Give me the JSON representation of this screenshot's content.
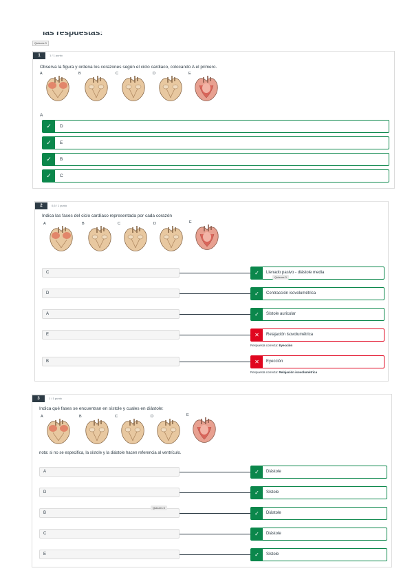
{
  "page": {
    "heading": "las respuestas:",
    "quizzes_tag": "Quizzes 3"
  },
  "floating_tags": {
    "tag_q2": "Quizzes 3",
    "tag_q3": "Quizzes 3"
  },
  "colors": {
    "correct": "#0b874b",
    "incorrect": "#e0061f",
    "number_badge": "#2d3b45"
  },
  "heart_labels": [
    "A",
    "B",
    "C",
    "D",
    "E"
  ],
  "q1": {
    "number": "1",
    "points": "1 / 1 punto",
    "text": "Observa la figura y ordena los corazones según el ciclo cardiaco, colocando A el primero.",
    "first_label": "A",
    "answers": [
      "D",
      "E",
      "B",
      "C"
    ]
  },
  "q2": {
    "number": "2",
    "points": "0,6 / 1 punto",
    "text": "Indica las fases del ciclo cardíaco representada por cada corazón",
    "rows": [
      {
        "left": "C",
        "right": "Llenado pasivo - diástole media",
        "correct": true
      },
      {
        "left": "D",
        "right": "Contracción isovolumétrica",
        "correct": true
      },
      {
        "left": "A",
        "right": "Sístole auricular",
        "correct": true
      },
      {
        "left": "E",
        "right": "Relajación isovolumétrica",
        "correct": false,
        "note_label": "Respuesta correcta:",
        "note_value": "Eyección"
      },
      {
        "left": "B",
        "right": "Eyección",
        "correct": false,
        "note_label": "Respuesta correcta:",
        "note_value": "Relajación isovolumétrica"
      }
    ]
  },
  "q3": {
    "number": "3",
    "points": "1 / 1 punto",
    "text": "Indica qué fases se encuentran en sístole y cuales en diástole:",
    "note": "nota: si no se especifica, la sístole y la diástole hacen referencia al ventrículo.",
    "rows": [
      {
        "left": "A",
        "right": "Diástole"
      },
      {
        "left": "D",
        "right": "Sístole"
      },
      {
        "left": "B",
        "right": "Diástole"
      },
      {
        "left": "C",
        "right": "Diástole"
      },
      {
        "left": "E",
        "right": "Sístole"
      }
    ]
  },
  "icons": {
    "correct": "check-icon",
    "incorrect": "x-icon"
  }
}
